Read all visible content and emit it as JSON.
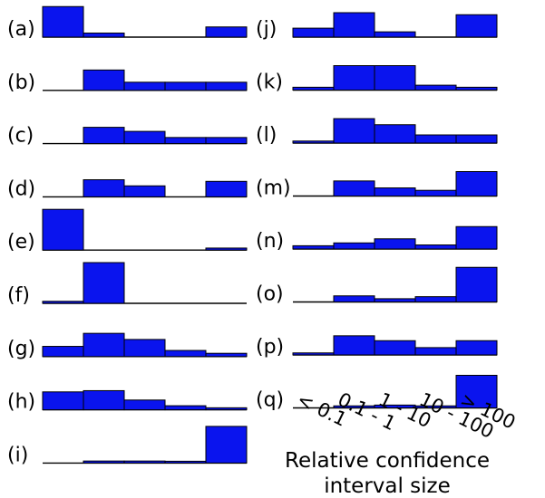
{
  "chart_data": {
    "type": "bar",
    "xlabel": "Relative confidence interval size",
    "categories": [
      "< 0.1",
      "0.1 - 1",
      "1 - 10",
      "10 - 100",
      "> 100"
    ],
    "panels": [
      {
        "label": "(a)",
        "values": [
          0.75,
          0.1,
          0,
          0,
          0.25
        ]
      },
      {
        "label": "(b)",
        "values": [
          0,
          0.5,
          0.2,
          0.2,
          0.2
        ]
      },
      {
        "label": "(c)",
        "values": [
          0,
          0.4,
          0.3,
          0.15,
          0.15
        ]
      },
      {
        "label": "(d)",
        "values": [
          0,
          0.42,
          0.27,
          0,
          0.38
        ]
      },
      {
        "label": "(e)",
        "values": [
          1.0,
          0,
          0,
          0,
          0.05
        ]
      },
      {
        "label": "(f)",
        "values": [
          0.05,
          1.0,
          0,
          0,
          0
        ]
      },
      {
        "label": "(g)",
        "values": [
          0.25,
          0.57,
          0.42,
          0.15,
          0.08
        ]
      },
      {
        "label": "(h)",
        "values": [
          0.44,
          0.47,
          0.24,
          0.1,
          0.05
        ]
      },
      {
        "label": "(i)",
        "values": [
          0,
          0.05,
          0.05,
          0.04,
          0.9
        ]
      },
      {
        "label": "(j)",
        "values": [
          0.22,
          0.6,
          0.13,
          0,
          0.55
        ]
      },
      {
        "label": "(k)",
        "values": [
          0.07,
          0.6,
          0.6,
          0.12,
          0.07
        ]
      },
      {
        "label": "(l)",
        "values": [
          0.05,
          0.6,
          0.45,
          0.2,
          0.2
        ]
      },
      {
        "label": "(m)",
        "values": [
          0,
          0.37,
          0.2,
          0.14,
          0.6
        ]
      },
      {
        "label": "(n)",
        "values": [
          0.08,
          0.15,
          0.25,
          0.1,
          0.55
        ]
      },
      {
        "label": "(o)",
        "values": [
          0,
          0.15,
          0.08,
          0.13,
          0.85
        ]
      },
      {
        "label": "(p)",
        "values": [
          0.05,
          0.47,
          0.35,
          0.18,
          0.35
        ]
      },
      {
        "label": "(q)",
        "values": [
          0,
          0.05,
          0.07,
          0.05,
          0.8
        ]
      }
    ],
    "bar_color": "#0a14ee",
    "bar_edge_color": "#000000"
  }
}
